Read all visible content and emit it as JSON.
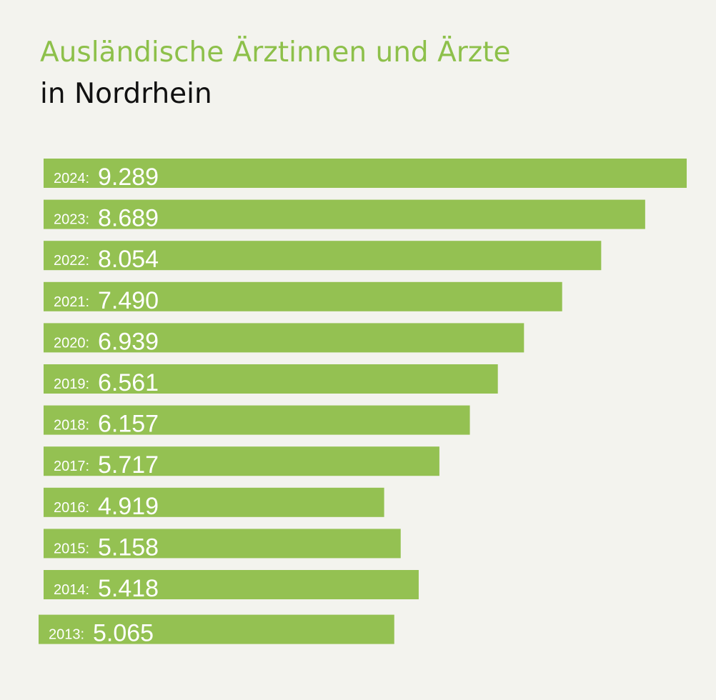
{
  "header": {
    "title": "Ausländische Ärztinnen und Ärzte",
    "subtitle": "in Nordrhein"
  },
  "colors": {
    "background": "#f3f3ee",
    "bar": "#94c152",
    "title": "#8dc04a",
    "subtitle": "#111111",
    "label": "#ffffff"
  },
  "chart_data": {
    "type": "bar",
    "orientation": "horizontal",
    "title": "Ausländische Ärztinnen und Ärzte",
    "subtitle": "in Nordrhein",
    "xlabel": "",
    "ylabel": "",
    "grid": false,
    "legend": "none",
    "xlim": [
      0,
      9289
    ],
    "categories": [
      "2024",
      "2023",
      "2022",
      "2021",
      "2020",
      "2019",
      "2018",
      "2017",
      "2016",
      "2015",
      "2014",
      "2013"
    ],
    "year_labels": [
      "2024:",
      "2023:",
      "2022:",
      "2021:",
      "2020:",
      "2019:",
      "2018:",
      "2017:",
      "2016:",
      "2015:",
      "2014:",
      "2013:"
    ],
    "value_labels": [
      "9.289",
      "8.689",
      "8.054",
      "7.490",
      "6.939",
      "6.561",
      "6.157",
      "5.717",
      "4.919",
      "5.158",
      "5.418",
      "5.065"
    ],
    "values": [
      9289,
      8689,
      8054,
      7490,
      6939,
      6561,
      6157,
      5717,
      4919,
      5158,
      5418,
      5065
    ]
  }
}
